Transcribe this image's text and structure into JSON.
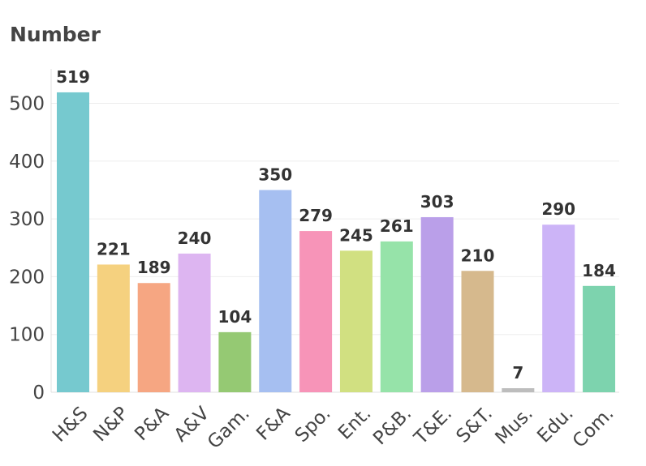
{
  "chart_data": {
    "type": "bar",
    "title": "Number",
    "xlabel": "",
    "ylabel": "",
    "ylim": [
      0,
      550
    ],
    "yticks": [
      0,
      100,
      200,
      300,
      400,
      500
    ],
    "grid": true,
    "legend": "none",
    "categories": [
      "H&S",
      "N&P",
      "P&A",
      "A&V",
      "Gam.",
      "F&A",
      "Spo.",
      "Ent.",
      "P&B.",
      "T&E.",
      "S&T.",
      "Mus.",
      "Edu.",
      "Com."
    ],
    "values": [
      519,
      221,
      189,
      240,
      104,
      350,
      279,
      245,
      261,
      303,
      210,
      7,
      290,
      184
    ],
    "colors": [
      "#76c9cf",
      "#f5d17f",
      "#f6a682",
      "#ddb5f1",
      "#95c973",
      "#a6bff1",
      "#f794b8",
      "#d1e081",
      "#96e3a9",
      "#ba9fe9",
      "#d6b98d",
      "#bdbdbd",
      "#ccb4f7",
      "#7dd3ae"
    ]
  }
}
